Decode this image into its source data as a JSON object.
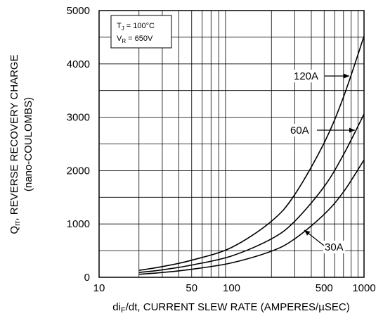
{
  "chart_data": {
    "type": "line",
    "title": "",
    "xlabel_main": "di",
    "xlabel_sub": "F",
    "xlabel_rest": "/dt, CURRENT SLEW RATE (AMPERES/µSEC)",
    "ylabel_line1_main": "Q",
    "ylabel_line1_sub": "rr",
    "ylabel_line1_rest": ", REVERSE RECOVERY CHARGE",
    "ylabel_line2": "(nano-COULOMBS)",
    "x_scale": "log",
    "xlim": [
      10,
      1000
    ],
    "ylim": [
      0,
      5000
    ],
    "grid": true,
    "x_ticks": [
      {
        "value": 10,
        "label": "10"
      },
      {
        "value": 50,
        "label": "50"
      },
      {
        "value": 100,
        "label": "100"
      },
      {
        "value": 500,
        "label": "500"
      },
      {
        "value": 1000,
        "label": "1000"
      }
    ],
    "y_ticks": [
      {
        "value": 0,
        "label": "0"
      },
      {
        "value": 1000,
        "label": "1000"
      },
      {
        "value": 2000,
        "label": "2000"
      },
      {
        "value": 3000,
        "label": "3000"
      },
      {
        "value": 4000,
        "label": "4000"
      },
      {
        "value": 5000,
        "label": "5000"
      }
    ],
    "conditions": {
      "line1_main": "T",
      "line1_sub": "J",
      "line1_rest": " = 100°C",
      "line2_main": "V",
      "line2_sub": "R",
      "line2_rest": " = 650V"
    },
    "series": [
      {
        "name": "120A",
        "x": [
          20,
          30,
          50,
          100,
          200,
          300,
          500,
          700,
          1000
        ],
        "y": [
          130,
          200,
          320,
          560,
          1050,
          1550,
          2520,
          3380,
          4520
        ]
      },
      {
        "name": "60A",
        "x": [
          20,
          30,
          50,
          100,
          200,
          300,
          500,
          700,
          1000
        ],
        "y": [
          90,
          140,
          230,
          400,
          720,
          1050,
          1700,
          2300,
          3060
        ]
      },
      {
        "name": "30A",
        "x": [
          20,
          30,
          50,
          100,
          200,
          300,
          500,
          700,
          1000
        ],
        "y": [
          55,
          90,
          150,
          270,
          490,
          720,
          1180,
          1600,
          2200
        ]
      }
    ],
    "annotations": [
      {
        "text": "120A",
        "series": "120A",
        "x": 730,
        "y": 3760
      },
      {
        "text": "60A",
        "series": "60A",
        "x": 755,
        "y": 2770
      },
      {
        "text": "30A",
        "series": "30A",
        "x": 430,
        "y": 930
      }
    ]
  }
}
